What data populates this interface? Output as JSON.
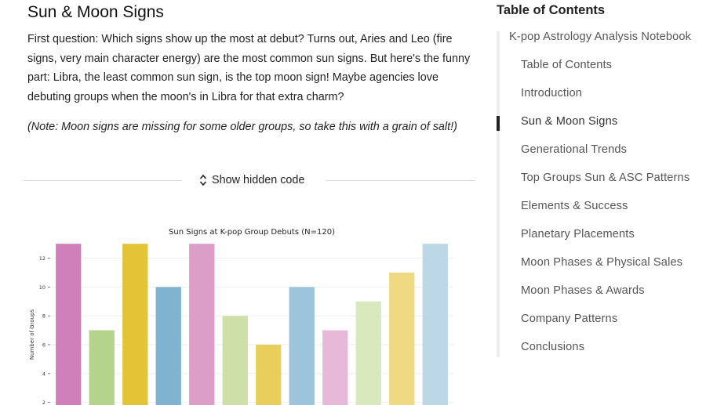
{
  "main": {
    "title": "Sun & Moon Signs",
    "paragraph": "First question: Which signs show up the most at debut? Turns out, Aries and Leo (fire signs, very main character energy) are the most common sun signs. But here's the funny part: Libra, the least common sun sign, is the top moon sign! Maybe agencies love debuting groups when the moon's in Libra for that extra charm?",
    "note": "(Note: Moon signs are missing for some older groups, so take this with a grain of salt!)",
    "toggle_code_label": "Show hidden code"
  },
  "chart_data": {
    "type": "bar",
    "title": "Sun Signs at K-pop Group Debuts (N=120)",
    "ylabel": "Number of Groups",
    "xlabel": "",
    "ylim": [
      1,
      13.5
    ],
    "yticks": [
      2,
      4,
      6,
      8,
      10,
      12
    ],
    "values": [
      13,
      7,
      13,
      10,
      13,
      8,
      6,
      10,
      7,
      9,
      11,
      13
    ],
    "colors": [
      "#cf7fba",
      "#b4d48c",
      "#e2c436",
      "#80b3cf",
      "#dc9ec9",
      "#cde0a7",
      "#e8cf5c",
      "#9cc4dc",
      "#e8b8d9",
      "#d9e8bd",
      "#efd983",
      "#bcd7e6"
    ],
    "grid": true
  },
  "toc": {
    "heading": "Table of Contents",
    "items": [
      {
        "label": "K-pop Astrology Analysis Notebook",
        "level": 1
      },
      {
        "label": "Table of Contents",
        "level": 2
      },
      {
        "label": "Introduction",
        "level": 2
      },
      {
        "label": "Sun & Moon Signs",
        "level": 2,
        "active": true
      },
      {
        "label": "Generational Trends",
        "level": 2
      },
      {
        "label": "Top Groups Sun & ASC Patterns",
        "level": 2
      },
      {
        "label": "Elements & Success",
        "level": 2
      },
      {
        "label": "Planetary Placements",
        "level": 2
      },
      {
        "label": "Moon Phases & Physical Sales",
        "level": 2
      },
      {
        "label": "Moon Phases & Awards",
        "level": 2
      },
      {
        "label": "Company Patterns",
        "level": 2
      },
      {
        "label": "Conclusions",
        "level": 2
      }
    ]
  }
}
